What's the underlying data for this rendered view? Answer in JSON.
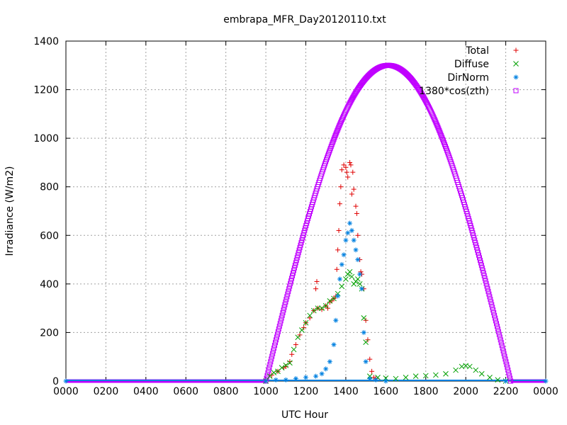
{
  "chart_data": {
    "type": "scatter",
    "title": "embrapa_MFR_Day20120110.txt",
    "xlabel": "UTC Hour",
    "ylabel": "Irradiance (W/m2)",
    "xlim": [
      0,
      24
    ],
    "ylim": [
      0,
      1400
    ],
    "x_ticks": [
      0,
      2,
      4,
      6,
      8,
      10,
      12,
      14,
      16,
      18,
      20,
      22,
      24
    ],
    "x_tick_labels": [
      "0000",
      "0200",
      "0400",
      "0600",
      "0800",
      "1000",
      "1200",
      "1400",
      "1600",
      "1800",
      "2000",
      "2200",
      "0000"
    ],
    "y_ticks": [
      0,
      200,
      400,
      600,
      800,
      1000,
      1200,
      1400
    ],
    "y_tick_labels": [
      "0",
      "200",
      "400",
      "600",
      "800",
      "1000",
      "1200",
      "1400"
    ],
    "grid": true,
    "legend_position": "top-right",
    "series": [
      {
        "name": "Total",
        "color": "#e00000",
        "marker": "plus",
        "points": [
          [
            10.0,
            0
          ],
          [
            10.3,
            25
          ],
          [
            10.6,
            40
          ],
          [
            10.9,
            55
          ],
          [
            11.0,
            60
          ],
          [
            11.2,
            80
          ],
          [
            11.3,
            110
          ],
          [
            11.5,
            150
          ],
          [
            11.7,
            190
          ],
          [
            11.9,
            220
          ],
          [
            12.0,
            240
          ],
          [
            12.2,
            260
          ],
          [
            12.4,
            290
          ],
          [
            12.5,
            380
          ],
          [
            12.55,
            410
          ],
          [
            12.6,
            300
          ],
          [
            12.8,
            295
          ],
          [
            13.0,
            310
          ],
          [
            13.1,
            300
          ],
          [
            13.2,
            325
          ],
          [
            13.3,
            330
          ],
          [
            13.4,
            340
          ],
          [
            13.5,
            350
          ],
          [
            13.55,
            460
          ],
          [
            13.6,
            540
          ],
          [
            13.65,
            620
          ],
          [
            13.7,
            730
          ],
          [
            13.75,
            800
          ],
          [
            13.8,
            870
          ],
          [
            13.9,
            890
          ],
          [
            14.0,
            880
          ],
          [
            14.05,
            860
          ],
          [
            14.1,
            840
          ],
          [
            14.2,
            900
          ],
          [
            14.25,
            890
          ],
          [
            14.3,
            770
          ],
          [
            14.35,
            860
          ],
          [
            14.4,
            790
          ],
          [
            14.5,
            720
          ],
          [
            14.55,
            690
          ],
          [
            14.6,
            600
          ],
          [
            14.7,
            500
          ],
          [
            14.75,
            450
          ],
          [
            14.8,
            440
          ],
          [
            14.9,
            380
          ],
          [
            15.0,
            250
          ],
          [
            15.1,
            170
          ],
          [
            15.2,
            90
          ],
          [
            15.3,
            40
          ],
          [
            15.4,
            15
          ],
          [
            15.5,
            10
          ]
        ]
      },
      {
        "name": "Diffuse",
        "color": "#00a000",
        "marker": "cross",
        "points": [
          [
            10.0,
            0
          ],
          [
            10.2,
            20
          ],
          [
            10.4,
            35
          ],
          [
            10.6,
            40
          ],
          [
            10.8,
            55
          ],
          [
            11.0,
            65
          ],
          [
            11.2,
            75
          ],
          [
            11.4,
            130
          ],
          [
            11.6,
            180
          ],
          [
            11.8,
            210
          ],
          [
            12.0,
            240
          ],
          [
            12.2,
            270
          ],
          [
            12.4,
            290
          ],
          [
            12.6,
            300
          ],
          [
            12.8,
            300
          ],
          [
            13.0,
            310
          ],
          [
            13.2,
            330
          ],
          [
            13.4,
            340
          ],
          [
            13.6,
            360
          ],
          [
            13.8,
            390
          ],
          [
            14.0,
            420
          ],
          [
            14.1,
            440
          ],
          [
            14.2,
            450
          ],
          [
            14.3,
            430
          ],
          [
            14.4,
            400
          ],
          [
            14.5,
            410
          ],
          [
            14.6,
            420
          ],
          [
            14.7,
            400
          ],
          [
            14.8,
            380
          ],
          [
            14.9,
            260
          ],
          [
            15.0,
            160
          ],
          [
            15.2,
            20
          ],
          [
            15.6,
            15
          ],
          [
            16.0,
            12
          ],
          [
            16.5,
            10
          ],
          [
            17.0,
            15
          ],
          [
            17.5,
            20
          ],
          [
            18.0,
            22
          ],
          [
            18.5,
            25
          ],
          [
            19.0,
            30
          ],
          [
            19.5,
            45
          ],
          [
            19.8,
            60
          ],
          [
            20.0,
            63
          ],
          [
            20.2,
            60
          ],
          [
            20.5,
            45
          ],
          [
            20.8,
            30
          ],
          [
            21.2,
            15
          ],
          [
            21.6,
            5
          ],
          [
            22.0,
            0
          ]
        ]
      },
      {
        "name": "DirNorm",
        "color": "#0080e0",
        "marker": "star",
        "points": [
          [
            0,
            0
          ],
          [
            10.0,
            0
          ],
          [
            10.5,
            5
          ],
          [
            11.0,
            5
          ],
          [
            11.5,
            10
          ],
          [
            12.0,
            15
          ],
          [
            12.5,
            20
          ],
          [
            12.8,
            30
          ],
          [
            13.0,
            50
          ],
          [
            13.2,
            80
          ],
          [
            13.4,
            150
          ],
          [
            13.5,
            250
          ],
          [
            13.6,
            350
          ],
          [
            13.7,
            420
          ],
          [
            13.8,
            480
          ],
          [
            13.9,
            520
          ],
          [
            14.0,
            580
          ],
          [
            14.1,
            610
          ],
          [
            14.2,
            650
          ],
          [
            14.3,
            620
          ],
          [
            14.4,
            580
          ],
          [
            14.5,
            540
          ],
          [
            14.6,
            500
          ],
          [
            14.7,
            440
          ],
          [
            14.8,
            380
          ],
          [
            14.9,
            200
          ],
          [
            15.0,
            80
          ],
          [
            15.2,
            10
          ],
          [
            15.5,
            5
          ],
          [
            16.0,
            0
          ],
          [
            22.0,
            0
          ],
          [
            24.0,
            0
          ]
        ]
      },
      {
        "name": "1380*cos(zth)",
        "color": "#c000ff",
        "marker": "square",
        "curve": {
          "sunrise": 10.0,
          "sunset": 22.25,
          "peak": 1300,
          "peak_hour": 16.25
        }
      }
    ]
  }
}
